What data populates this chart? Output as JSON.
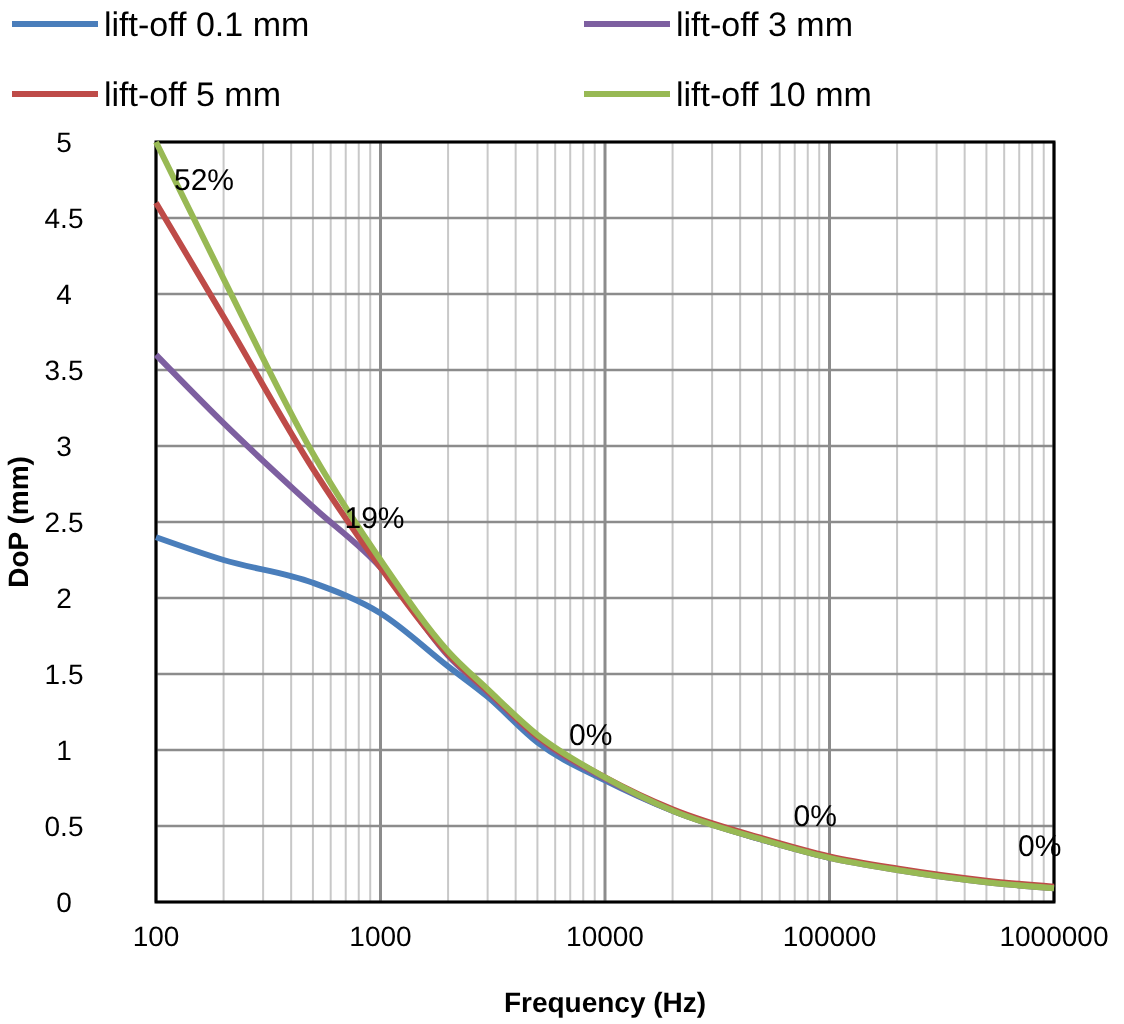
{
  "chart_data": {
    "type": "line",
    "xlabel": "Frequency (Hz)",
    "ylabel": "DoP (mm)",
    "log": "x",
    "grid": true,
    "legend": "top",
    "line_style": "solid",
    "marker": "none",
    "x": [
      100,
      200,
      500,
      1000,
      2000,
      3000,
      5000,
      10000,
      20000,
      50000,
      100000,
      200000,
      500000,
      1000000
    ],
    "xlim": [
      100,
      1000000
    ],
    "xticks": [
      100,
      1000,
      10000,
      100000,
      1000000
    ],
    "ylim": [
      0,
      5
    ],
    "yticks": [
      0,
      0.5,
      1,
      1.5,
      2,
      2.5,
      3,
      3.5,
      4,
      4.5,
      5
    ],
    "series": [
      {
        "name": "lift-off 0.1 mm",
        "color": "#4a7ebb",
        "values": [
          2.4,
          2.25,
          2.1,
          1.9,
          1.55,
          1.35,
          1.05,
          0.8,
          0.6,
          0.41,
          0.29,
          null,
          null,
          null
        ]
      },
      {
        "name": "lift-off 3  mm",
        "color": "#7d5fa0",
        "values": [
          3.6,
          3.15,
          2.6,
          2.2,
          1.62,
          1.38,
          1.08,
          0.81,
          0.6,
          0.41,
          0.29,
          0.21,
          0.13,
          0.09
        ]
      },
      {
        "name": "lift-off 5  mm",
        "color": "#be4b48",
        "values": [
          4.6,
          3.85,
          2.85,
          2.2,
          1.63,
          1.39,
          1.09,
          0.82,
          0.61,
          0.42,
          0.3,
          0.22,
          0.14,
          0.1
        ]
      },
      {
        "name": "lift-off 10 mm",
        "color": "#98b954",
        "values": [
          5,
          4.1,
          2.95,
          2.25,
          1.65,
          1.4,
          1.1,
          0.82,
          0.6,
          0.41,
          0.29,
          0.21,
          0.13,
          0.09
        ]
      }
    ],
    "annotations": [
      {
        "text": "52%",
        "x": 100,
        "y": 5
      },
      {
        "text": "19%",
        "x": 1000,
        "y": 2.25
      },
      {
        "text": "0%",
        "x": 10000,
        "y": 0.82
      },
      {
        "text": "0%",
        "x": 100000,
        "y": 0.29
      },
      {
        "text": "0%",
        "x": 1000000,
        "y": 0.09
      }
    ]
  }
}
